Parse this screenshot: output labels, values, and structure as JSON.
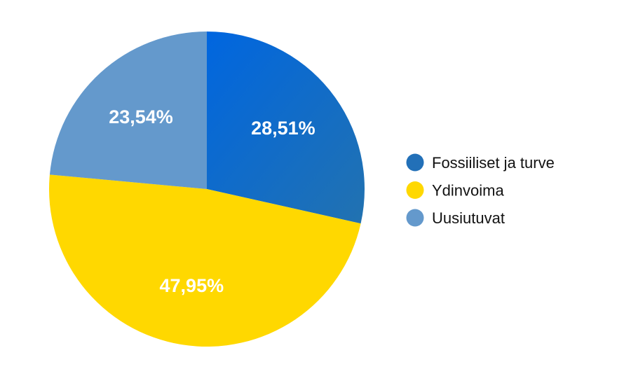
{
  "chart_data": {
    "type": "pie",
    "start_angle": "top",
    "direction": "clockwise",
    "legend_position": "right",
    "slices": [
      {
        "label": "Fossiiliset ja turve",
        "value": 28.51,
        "display": "28,51%",
        "color": "#2270b8"
      },
      {
        "label": "Ydinvoima",
        "value": 47.95,
        "display": "47,95%",
        "color": "#ffd800"
      },
      {
        "label": "Uusiutuvat",
        "value": 23.54,
        "display": "23,54%",
        "color": "#6499cc"
      }
    ]
  }
}
